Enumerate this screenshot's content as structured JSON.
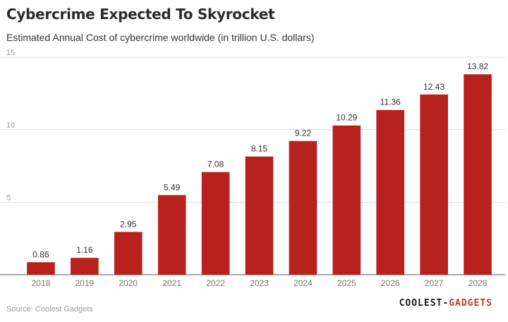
{
  "chart_data": {
    "type": "bar",
    "title": "Cybercrime Expected To Skyrocket",
    "subtitle": "Estimated Annual Cost of cybercrime worldwide (in trillion U.S. dollars)",
    "categories": [
      "2018",
      "2019",
      "2020",
      "2021",
      "2022",
      "2023",
      "2024",
      "2025",
      "2026",
      "2027",
      "2028"
    ],
    "values": [
      0.86,
      1.16,
      2.95,
      5.49,
      7.08,
      8.15,
      9.22,
      10.29,
      11.36,
      12.43,
      13.82
    ],
    "data_labels": [
      "0.86",
      "1.16",
      "2.95",
      "5.49",
      "7.08",
      "8.15",
      "9.22",
      "10.29",
      "11.36",
      "12.43",
      "13.82"
    ],
    "ylim": [
      0,
      15
    ],
    "yticks": [
      5,
      10,
      15
    ],
    "grid": true,
    "bar_color": "#b8221e"
  },
  "footer": {
    "source": "Source: Coolest Gadgets",
    "brand_left": "COOLEST-",
    "brand_right": "GADGETS"
  }
}
